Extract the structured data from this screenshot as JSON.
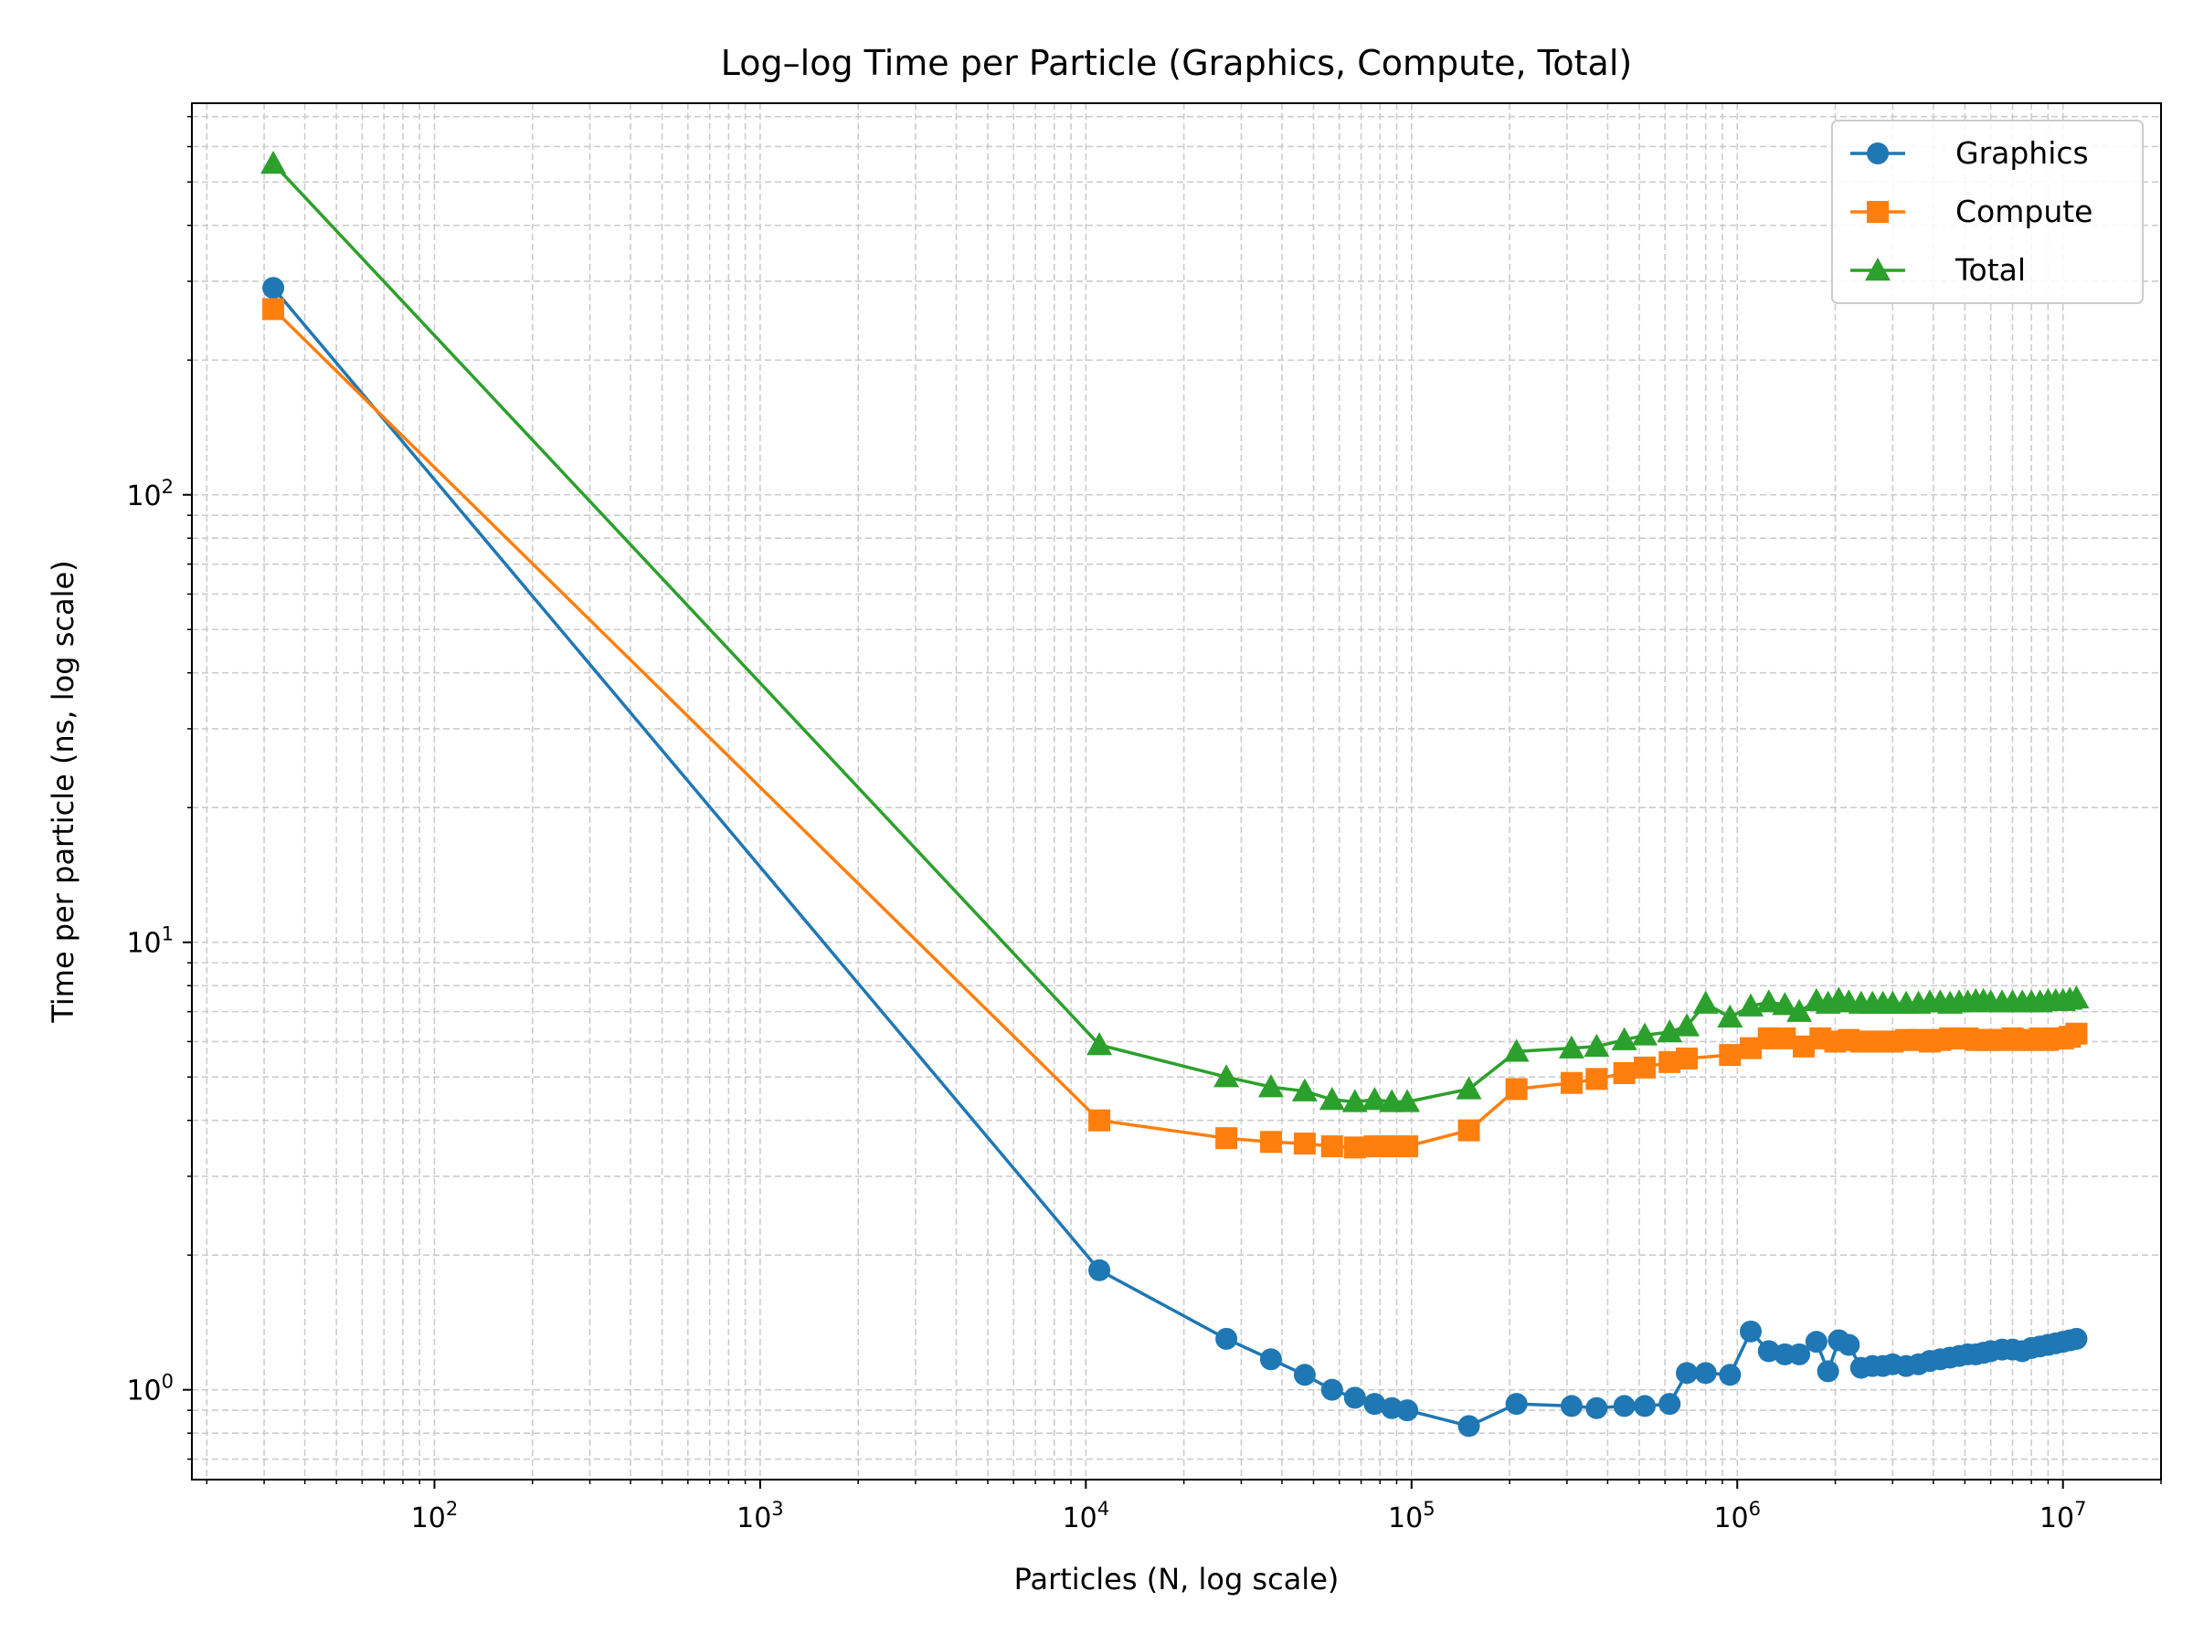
{
  "chart_data": {
    "type": "line",
    "title": "Log–log Time per Particle (Graphics, Compute, Total)",
    "xlabel": "Particles (N, log scale)",
    "ylabel": "Time per particle (ns, log scale)",
    "x_scale": "log",
    "y_scale": "log",
    "xlim": [
      18,
      20000000
    ],
    "ylim": [
      0.63,
      750
    ],
    "x_ticks": [
      {
        "value": 100,
        "label": "10",
        "exp": "2"
      },
      {
        "value": 1000,
        "label": "10",
        "exp": "3"
      },
      {
        "value": 10000,
        "label": "10",
        "exp": "4"
      },
      {
        "value": 100000,
        "label": "10",
        "exp": "5"
      },
      {
        "value": 1000000,
        "label": "10",
        "exp": "6"
      },
      {
        "value": 10000000,
        "label": "10",
        "exp": "7"
      }
    ],
    "y_ticks": [
      {
        "value": 1,
        "label": "10",
        "exp": "0"
      },
      {
        "value": 10,
        "label": "10",
        "exp": "1"
      },
      {
        "value": 100,
        "label": "10",
        "exp": "2"
      }
    ],
    "grid": true,
    "grid_style": "dashed, major and minor",
    "legend_position": "top-right",
    "series": [
      {
        "name": "Graphics",
        "color": "#1f77b4",
        "marker": "circle",
        "x": [
          32,
          11000,
          27000,
          37000,
          47000,
          57000,
          67000,
          77000,
          87000,
          97000,
          150000,
          210000,
          310000,
          370000,
          450000,
          520000,
          620000,
          700000,
          800000,
          950000,
          1100000,
          1250000,
          1400000,
          1550000,
          1750000,
          1900000,
          2050000,
          2200000,
          2400000,
          2600000,
          2800000,
          3000000,
          3300000,
          3600000,
          3900000,
          4200000,
          4500000,
          4800000,
          5100000,
          5400000,
          5700000,
          6000000,
          6500000,
          7000000,
          7500000,
          8000000,
          8500000,
          9000000,
          9500000,
          10000000,
          10500000,
          11000000
        ],
        "y": [
          290,
          1.85,
          1.3,
          1.17,
          1.08,
          1.0,
          0.96,
          0.93,
          0.91,
          0.9,
          0.83,
          0.93,
          0.92,
          0.91,
          0.92,
          0.92,
          0.93,
          1.09,
          1.09,
          1.08,
          1.35,
          1.22,
          1.2,
          1.2,
          1.28,
          1.1,
          1.29,
          1.26,
          1.12,
          1.13,
          1.13,
          1.14,
          1.13,
          1.14,
          1.16,
          1.17,
          1.18,
          1.19,
          1.2,
          1.2,
          1.21,
          1.22,
          1.23,
          1.23,
          1.22,
          1.24,
          1.25,
          1.26,
          1.27,
          1.28,
          1.29,
          1.3
        ]
      },
      {
        "name": "Compute",
        "color": "#ff7f0e",
        "marker": "square",
        "x": [
          32,
          11000,
          27000,
          37000,
          47000,
          57000,
          67000,
          77000,
          87000,
          97000,
          150000,
          210000,
          310000,
          370000,
          450000,
          520000,
          620000,
          700000,
          950000,
          1100000,
          1250000,
          1400000,
          1600000,
          1800000,
          2000000,
          2200000,
          2400000,
          2600000,
          2800000,
          3000000,
          3300000,
          3600000,
          3900000,
          4200000,
          4500000,
          4800000,
          5100000,
          5400000,
          5700000,
          6000000,
          6500000,
          7000000,
          7500000,
          8000000,
          8500000,
          9000000,
          9500000,
          10000000,
          10500000,
          11000000
        ],
        "y": [
          260,
          4.0,
          3.65,
          3.58,
          3.55,
          3.5,
          3.48,
          3.5,
          3.5,
          3.5,
          3.8,
          4.7,
          4.85,
          4.95,
          5.1,
          5.25,
          5.4,
          5.5,
          5.6,
          5.8,
          6.1,
          6.1,
          5.85,
          6.1,
          6.0,
          6.05,
          6.0,
          6.0,
          6.0,
          6.0,
          6.05,
          6.05,
          6.0,
          6.05,
          6.1,
          6.1,
          6.1,
          6.05,
          6.05,
          6.05,
          6.05,
          6.1,
          6.05,
          6.05,
          6.1,
          6.05,
          6.1,
          6.1,
          6.15,
          6.25
        ]
      },
      {
        "name": "Total",
        "color": "#2ca02c",
        "marker": "triangle",
        "x": [
          32,
          11000,
          27000,
          37000,
          47000,
          57000,
          67000,
          77000,
          87000,
          97000,
          150000,
          210000,
          310000,
          370000,
          450000,
          520000,
          620000,
          700000,
          800000,
          950000,
          1100000,
          1250000,
          1400000,
          1550000,
          1750000,
          1900000,
          2050000,
          2200000,
          2400000,
          2600000,
          2800000,
          3000000,
          3300000,
          3600000,
          3900000,
          4200000,
          4500000,
          4800000,
          5100000,
          5400000,
          5700000,
          6000000,
          6500000,
          7000000,
          7500000,
          8000000,
          8500000,
          9000000,
          9500000,
          10000000,
          10500000,
          11000000
        ],
        "y": [
          550,
          5.9,
          5.0,
          4.75,
          4.65,
          4.45,
          4.4,
          4.45,
          4.4,
          4.4,
          4.7,
          5.7,
          5.8,
          5.85,
          6.05,
          6.2,
          6.3,
          6.5,
          7.3,
          6.8,
          7.2,
          7.35,
          7.25,
          7.0,
          7.4,
          7.3,
          7.45,
          7.35,
          7.3,
          7.3,
          7.3,
          7.3,
          7.3,
          7.3,
          7.35,
          7.35,
          7.3,
          7.35,
          7.35,
          7.4,
          7.4,
          7.35,
          7.35,
          7.35,
          7.35,
          7.35,
          7.35,
          7.4,
          7.4,
          7.4,
          7.45,
          7.5
        ]
      }
    ]
  }
}
